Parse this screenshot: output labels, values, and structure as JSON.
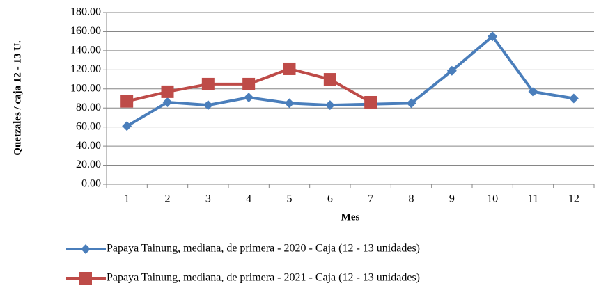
{
  "chart_data": {
    "type": "line",
    "x_label": "Mes",
    "y_label": "Quetzales / caja 12 - 13 U.",
    "categories": [
      "1",
      "2",
      "3",
      "4",
      "5",
      "6",
      "7",
      "8",
      "9",
      "10",
      "11",
      "12"
    ],
    "series": [
      {
        "name": "Papaya Tainung, mediana, de primera - 2020 - Caja (12 - 13 unidades)",
        "color": "#4a7ebb",
        "marker": "diamond",
        "values": [
          61,
          86,
          83,
          91,
          85,
          83,
          84,
          85,
          119,
          155,
          97,
          90
        ]
      },
      {
        "name": "Papaya Tainung, mediana, de primera - 2021 - Caja (12 - 13 unidades)",
        "color": "#be4b48",
        "marker": "square",
        "values": [
          87,
          97,
          105,
          105,
          121,
          110,
          86,
          null,
          null,
          null,
          null,
          null
        ]
      }
    ],
    "ylim": [
      0,
      180
    ],
    "yticks": [
      {
        "value": 0,
        "label": "0.00"
      },
      {
        "value": 20,
        "label": "20.00"
      },
      {
        "value": 40,
        "label": "40.00"
      },
      {
        "value": 60,
        "label": "60.00"
      },
      {
        "value": 80,
        "label": "80.00"
      },
      {
        "value": 100,
        "label": "100.00"
      },
      {
        "value": 120,
        "label": "120.00"
      },
      {
        "value": 140,
        "label": "140.00"
      },
      {
        "value": 160,
        "label": "160.00"
      },
      {
        "value": 180,
        "label": "180.00"
      }
    ],
    "grid": true
  }
}
